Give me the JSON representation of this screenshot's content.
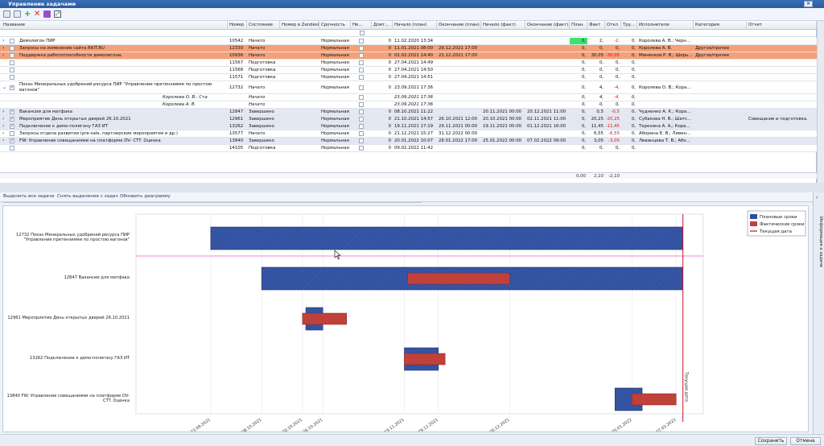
{
  "window": {
    "title": "Управление задачами",
    "close_glyph": "×"
  },
  "toolbar": {
    "icons": [
      "add-icon",
      "remove-icon",
      "add-green-icon",
      "delete-icon",
      "document-icon",
      "expand-icon"
    ]
  },
  "columns": [
    "Название",
    "Номер",
    "Состояние",
    "Номер в Zendesk",
    "Срочность",
    "Не...",
    "Длит...",
    "Начало (план)",
    "Окончание (план)",
    "Начало (факт)",
    "Окончание (факт)",
    "План.",
    "Факт",
    "Откл",
    "Тру...",
    "Исполнители",
    "Категория",
    "Отчет"
  ],
  "rows": [
    {
      "expand": "›",
      "checked": false,
      "name": "Демолигон ПИР",
      "num": "10542",
      "state": "Начато",
      "zendesk": "",
      "urgency": "Нормальная",
      "dur": "0",
      "start_plan": "11.02.2020 13:34",
      "end_plan": "",
      "start_fact": "",
      "end_fact": "",
      "plan": "0,",
      "fact": "2,",
      "dev": "-2,",
      "tru": "0,",
      "execs": "Королева А. В.; Черн...",
      "cat": "",
      "rep": "",
      "style": "plain"
    },
    {
      "expand": "›",
      "checked": false,
      "name": "Запросы на изменение сайта RKIT.RU",
      "num": "12330",
      "state": "Начато",
      "zendesk": "",
      "urgency": "Нормальная",
      "dur": "0",
      "start_plan": "11.01.2021 08:00",
      "end_plan": "29.12.2021 17:00",
      "start_fact": "",
      "end_fact": "",
      "plan": "0,",
      "fact": "0,",
      "dev": "0,",
      "tru": "0,",
      "execs": "Королева А. В.",
      "cat": "Другое/прочее",
      "rep": "",
      "style": "overdue"
    },
    {
      "expand": "›",
      "checked": false,
      "name": "Поддержка работоспособности демолигона.",
      "num": "10936",
      "state": "Начато",
      "zendesk": "",
      "urgency": "Нормальная",
      "dur": "0",
      "start_plan": "02.02.2021 14:40",
      "end_plan": "21.12.2021 17:00",
      "start_fact": "",
      "end_fact": "",
      "plan": "0,",
      "fact": "30,05",
      "dev": "-30,05",
      "tru": "0,",
      "execs": "Миненков Р. В.; Шерь...",
      "cat": "Другое/прочее",
      "rep": "",
      "style": "overdue"
    },
    {
      "expand": "",
      "checked": false,
      "name": "",
      "num": "11567",
      "state": "Подготовка",
      "zendesk": "",
      "urgency": "Нормальная",
      "dur": "0",
      "start_plan": "27.04.2021 14:49",
      "end_plan": "",
      "start_fact": "",
      "end_fact": "",
      "plan": "0,",
      "fact": "0,",
      "dev": "0,",
      "tru": "0,",
      "execs": "",
      "cat": "",
      "rep": "",
      "style": "plain"
    },
    {
      "expand": "",
      "checked": false,
      "name": "",
      "num": "11568",
      "state": "Подготовка",
      "zendesk": "",
      "urgency": "Нормальная",
      "dur": "0",
      "start_plan": "27.04.2021 14:50",
      "end_plan": "",
      "start_fact": "",
      "end_fact": "",
      "plan": "0,",
      "fact": "0,",
      "dev": "0,",
      "tru": "0,",
      "execs": "",
      "cat": "",
      "rep": "",
      "style": "plain"
    },
    {
      "expand": "",
      "checked": false,
      "name": "",
      "num": "11571",
      "state": "Подготовка",
      "zendesk": "",
      "urgency": "Нормальная",
      "dur": "0",
      "start_plan": "27.04.2021 14:51",
      "end_plan": "",
      "start_fact": "",
      "end_fact": "",
      "plan": "0,",
      "fact": "0,",
      "dev": "0,",
      "tru": "0,",
      "execs": "",
      "cat": "",
      "rep": "",
      "style": "plain"
    },
    {
      "expand": "⌄",
      "checked": true,
      "name": "Показ Минеральных удобрений ресурса ПИР \"Управление претензиями по простою вагонов\"",
      "num": "12732",
      "state": "Начато",
      "zendesk": "",
      "urgency": "Нормальная",
      "dur": "0",
      "start_plan": "23.09.2021 17:36",
      "end_plan": "",
      "start_fact": "",
      "end_fact": "",
      "plan": "0,",
      "fact": "4,",
      "dev": "-4,",
      "tru": "0,",
      "execs": "Королева О. В.; Кора...",
      "cat": "",
      "rep": "",
      "style": "tall"
    },
    {
      "expand": "",
      "checked": false,
      "name": "Королева О. В.: Ста",
      "num": "",
      "state": "Начато",
      "zendesk": "",
      "urgency": "",
      "dur": "",
      "start_plan": "23.09.2021 17:36",
      "end_plan": "",
      "start_fact": "",
      "end_fact": "",
      "plan": "0,",
      "fact": "4,",
      "dev": "-4,",
      "tru": "0,",
      "execs": "",
      "cat": "",
      "rep": "",
      "style": "sub"
    },
    {
      "expand": "",
      "checked": false,
      "name": "Королева А. В.",
      "num": "",
      "state": "Начато",
      "zendesk": "",
      "urgency": "",
      "dur": "",
      "start_plan": "23.09.2021 17:36",
      "end_plan": "",
      "start_fact": "",
      "end_fact": "",
      "plan": "0,",
      "fact": "0,",
      "dev": "0,",
      "tru": "0,",
      "execs": "",
      "cat": "",
      "rep": "",
      "style": "sub"
    },
    {
      "expand": "›",
      "checked": true,
      "name": "Вакансии для матфака",
      "num": "12847",
      "state": "Завершено",
      "zendesk": "",
      "urgency": "Нормальная",
      "dur": "0",
      "start_plan": "08.10.2021 11:22",
      "end_plan": "",
      "start_fact": "20.11.2021 00:00",
      "end_fact": "20.12.2021 11:00",
      "plan": "0,",
      "fact": "0,5",
      "dev": "-0,5",
      "tru": "0,",
      "execs": "Чудненко А. К.; Кора...",
      "cat": "",
      "rep": "",
      "style": "sel"
    },
    {
      "expand": "›",
      "checked": true,
      "name": "Мероприятие День открытых дверей 26.10.2021",
      "num": "12961",
      "state": "Завершено",
      "zendesk": "",
      "urgency": "Нормальная",
      "dur": "0",
      "start_plan": "21.10.2021 14:57",
      "end_plan": "26.10.2021 12:00",
      "start_fact": "20.10.2021 00:00",
      "end_fact": "02.11.2021 11:00",
      "plan": "0,",
      "fact": "20,25",
      "dev": "-20,25",
      "tru": "0,",
      "execs": "Субакова Н. В.; Шитс...",
      "cat": "",
      "rep": "Совещание и подготовка.",
      "style": "sel"
    },
    {
      "expand": "›",
      "checked": true,
      "name": "Подключение к демо-полигону ГАЗ ИТ",
      "num": "13262",
      "state": "Завершено",
      "zendesk": "",
      "urgency": "Нормальная",
      "dur": "0",
      "start_plan": "19.11.2021 17:19",
      "end_plan": "29.11.2021 00:00",
      "start_fact": "19.11.2021 00:00",
      "end_fact": "01.12.2021 16:00",
      "plan": "0,",
      "fact": "11,45",
      "dev": "-11,45",
      "tru": "0,",
      "execs": "Терехина А. А.; Кора...",
      "cat": "",
      "rep": "",
      "style": "sel"
    },
    {
      "expand": "›",
      "checked": false,
      "name": "Запросы отдела развития (pre-sale, партнерские мероприятия и др.)",
      "num": "13577",
      "state": "Начато",
      "zendesk": "",
      "urgency": "Нормальная",
      "dur": "0",
      "start_plan": "21.12.2021 15:27",
      "end_plan": "31.12.2022 00:00",
      "start_fact": "",
      "end_fact": "",
      "plan": "0,",
      "fact": "6,55",
      "dev": "-6,55",
      "tru": "0,",
      "execs": "Аборина Е. В.; Ливен...",
      "cat": "",
      "rep": "",
      "style": "plain"
    },
    {
      "expand": "›",
      "checked": true,
      "name": "FW: Управление совещаниями на платформе DV- CTT. Оценка",
      "num": "13840",
      "state": "Завершено",
      "zendesk": "",
      "urgency": "Нормальная",
      "dur": "0",
      "start_plan": "20.01.2022 10:07",
      "end_plan": "28.01.2022 17:00",
      "start_fact": "25.01.2022 00:00",
      "end_fact": "07.02.2022 09:00",
      "plan": "0,",
      "fact": "3,05",
      "dev": "-3,05",
      "tru": "0,",
      "execs": "Ливанцева Т. В.; Або...",
      "cat": "",
      "rep": "",
      "style": "sel"
    },
    {
      "expand": "",
      "checked": false,
      "name": "",
      "num": "14105",
      "state": "Подготовка",
      "zendesk": "",
      "urgency": "Нормальная",
      "dur": "0",
      "start_plan": "09.02.2022 11:42",
      "end_plan": "",
      "start_fact": "",
      "end_fact": "",
      "plan": "0,",
      "fact": "0,",
      "dev": "0,",
      "tru": "0,",
      "execs": "",
      "cat": "",
      "rep": "",
      "style": "plain"
    }
  ],
  "totals": {
    "plan": "0,00",
    "fact": "2,10",
    "dev": "-2,10"
  },
  "links": {
    "select_all": "Выделить все задачи",
    "clear_sel": "Снять выделение с задач",
    "refresh": "Обновить диаграмму"
  },
  "right_panel": {
    "label": "Информация о задаче"
  },
  "chart_data": {
    "type": "gantt",
    "legend": [
      {
        "name": "Плановые сроки",
        "color": "#2f4f9e"
      },
      {
        "name": "Фактические сроки",
        "color": "#c0403a"
      },
      {
        "name": "Текущая дата",
        "color": "#c2142a"
      }
    ],
    "date_ticks": [
      "23.09.2021",
      "08.10.2021",
      "20.10.2021",
      "26.10.2021",
      "19.11.2021",
      "29.11.2021",
      "20.12.2021",
      "25.01.2022",
      "07.02.2022"
    ],
    "current_date_label": "Текущая дата",
    "x_min": "2021-09-01",
    "x_max": "2022-02-15",
    "current_date": "2022-02-09",
    "tasks": [
      {
        "label": "12732 Показ Минеральных удобрений ресурса ПИР \"Управление претензиями по простою вагонов\"",
        "plan_start": "2021-09-23",
        "plan_end": "2022-02-09",
        "fact_start": null,
        "fact_end": null
      },
      {
        "label": "12847 Вакансии для матфака",
        "plan_start": "2021-10-08",
        "plan_end": "2022-02-09",
        "fact_start": "2021-11-20",
        "fact_end": "2021-12-20"
      },
      {
        "label": "12961 Мероприятие День открытых дверей 26.10.2021",
        "plan_start": "2021-10-21",
        "plan_end": "2021-10-26",
        "fact_start": "2021-10-20",
        "fact_end": "2021-11-02"
      },
      {
        "label": "13262 Подключение к демо-полигону ГАЗ ИТ",
        "plan_start": "2021-11-19",
        "plan_end": "2021-11-29",
        "fact_start": "2021-11-19",
        "fact_end": "2021-12-01"
      },
      {
        "label": "13840 FW: Управление совещаниями на платформе DV- CTT. Оценка",
        "plan_start": "2022-01-20",
        "plan_end": "2022-01-28",
        "fact_start": "2022-01-25",
        "fact_end": "2022-02-07"
      }
    ]
  },
  "footer": {
    "save": "Сохранить",
    "cancel": "Отмена"
  }
}
